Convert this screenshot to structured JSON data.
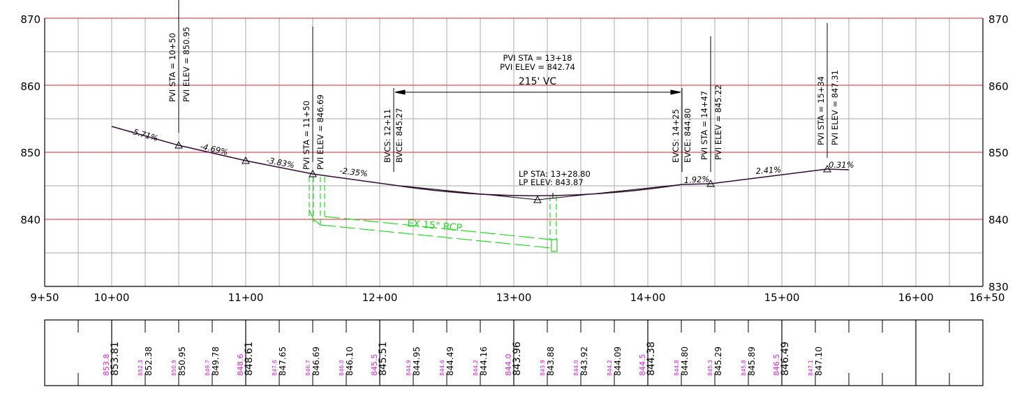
{
  "profile": {
    "elev_labels": [
      "870",
      "860",
      "850",
      "840",
      "830"
    ],
    "station_labels": [
      "9+50",
      "10+00",
      "11+00",
      "12+00",
      "13+00",
      "14+00",
      "15+00",
      "16+00",
      "16+50"
    ],
    "grades": [
      "-5.71%",
      "-4.69%",
      "-3.83%",
      "-2.35%",
      "1.92%",
      "2.41%",
      "0.31%"
    ],
    "pvi": [
      {
        "sta": "PVI STA = 10+50",
        "elev": "PVI ELEV = 850.95"
      },
      {
        "sta": "PVI STA = 11+50",
        "elev": "PVI ELEV = 846.69"
      },
      {
        "sta": "PVI STA = 14+47",
        "elev": "PVI ELEV = 845.22"
      },
      {
        "sta": "PVI STA = 15+34",
        "elev": "PVI ELEV = 847.31"
      }
    ],
    "vc": {
      "pvi_sta": "PVI STA = 13+18",
      "pvi_elev": "PVI ELEV = 842.74",
      "length": "215' VC",
      "bvcs": "BVCS: 12+11",
      "bvce": "BVCE: 845.27",
      "evcs": "EVCS: 14+25",
      "evce": "EVCE: 844.80",
      "lp_sta": "LP STA: 13+28.80",
      "lp_elev": "LP ELEV: 843.87"
    },
    "pipe_label": "EX 15\" RCP"
  },
  "elevation_table": {
    "existing": [
      "853.8",
      "852.3",
      "850.9",
      "849.7",
      "848.6",
      "847.6",
      "846.7",
      "846.0",
      "845.5",
      "844.9",
      "844.6",
      "844.2",
      "844.0",
      "843.9",
      "844.0",
      "844.2",
      "844.5",
      "844.8",
      "845.3",
      "845.8",
      "846.5",
      "847.1"
    ],
    "proposed": [
      "853.81",
      "852.38",
      "850.95",
      "849.78",
      "848.61",
      "847.65",
      "846.69",
      "846.10",
      "845.51",
      "844.95",
      "844.49",
      "844.16",
      "843.96",
      "843.88",
      "843.92",
      "844.09",
      "844.38",
      "844.80",
      "845.29",
      "845.89",
      "846.49",
      "847.10"
    ]
  },
  "colors": {
    "major_grid": "#e0202a",
    "minor_grid": "#a8a8a8",
    "profile_line": "#3a0a3a",
    "pipe": "#22dd22",
    "existing_text": "#e020e0",
    "text": "#000000"
  }
}
